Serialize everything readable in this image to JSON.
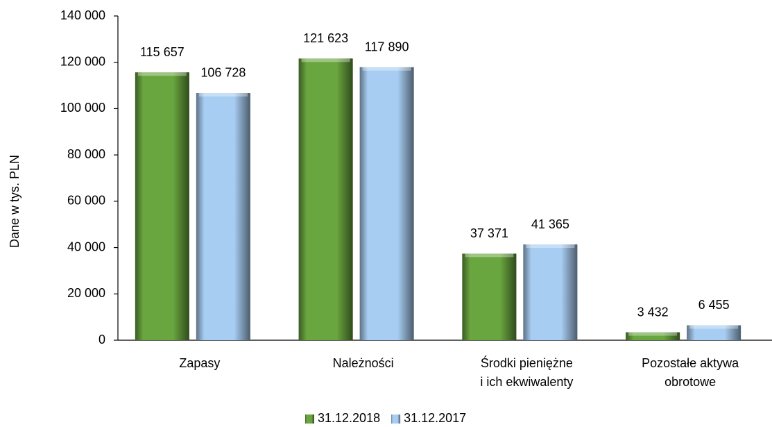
{
  "chart_data": {
    "type": "bar",
    "y_label": "Dane w tys. PLN",
    "categories": [
      "Zapasy",
      "Należności",
      "Środki pieniężne\ni ich ekwiwalenty",
      "Pozostałe aktywa\nobrotowe"
    ],
    "series": [
      {
        "name": "31.12.2018",
        "color": "#6aa63f",
        "values": [
          115657,
          121623,
          37371,
          3432
        ],
        "value_labels": [
          "115 657",
          "121 623",
          "37 371",
          "3 432"
        ]
      },
      {
        "name": "31.12.2017",
        "color": "#a8cdf2",
        "values": [
          106728,
          117890,
          41365,
          6455
        ],
        "value_labels": [
          "106 728",
          "117 890",
          "41 365",
          "6 455"
        ]
      }
    ],
    "ylim": [
      0,
      140000
    ],
    "yticks": [
      0,
      {
        "value": 20000,
        "label": "20 000"
      },
      {
        "value": 40000,
        "label": "40 000"
      },
      {
        "value": 60000,
        "label": "60 000"
      },
      {
        "value": 80000,
        "label": "80 000"
      },
      {
        "value": 100000,
        "label": "100 000"
      },
      {
        "value": 120000,
        "label": "120 000"
      },
      {
        "value": 140000,
        "label": "140 000"
      }
    ],
    "legend": "bottom"
  }
}
